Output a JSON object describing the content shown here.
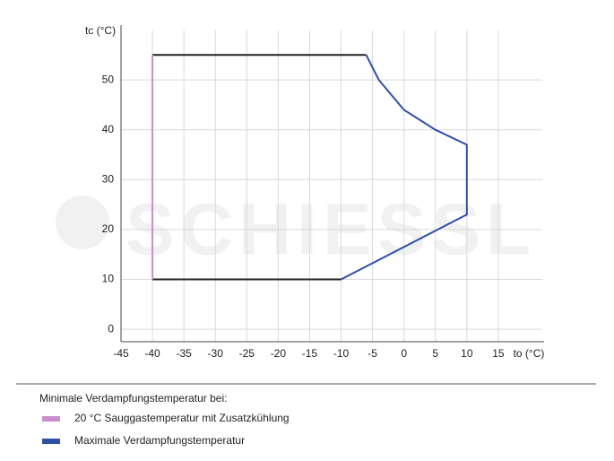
{
  "chart_data": {
    "type": "line",
    "watermark": "SCHIESSL",
    "ylabel": "tc (°C)",
    "xlabel": "to (°C)",
    "xlim": [
      -45,
      22
    ],
    "xticks": [
      -45,
      -40,
      -35,
      -30,
      -25,
      -20,
      -15,
      -10,
      -5,
      0,
      5,
      10,
      15
    ],
    "ylim": [
      -2.5,
      60
    ],
    "yticks": [
      0,
      10,
      20,
      30,
      40,
      50
    ],
    "grid": true,
    "legend_title": "Minimale Verdampfungstemperatur bei:",
    "series": [
      {
        "color": "#222222",
        "x": [
          -40,
          -6
        ],
        "values": [
          55,
          55
        ]
      },
      {
        "color": "#222222",
        "x": [
          -40,
          -10
        ],
        "values": [
          10,
          10
        ]
      },
      {
        "name": "20 °C Sauggastemperatur mit Zusatzkühlung",
        "color": "#c88fce",
        "x": [
          -40,
          -40
        ],
        "values": [
          10,
          55
        ]
      },
      {
        "name": "Maximale Verdampfungstemperatur",
        "color": "#2f4fa8",
        "x": [
          -6,
          -4,
          0,
          5,
          10,
          10,
          -10
        ],
        "values": [
          55,
          50,
          44,
          40,
          37,
          23,
          10
        ]
      }
    ]
  }
}
